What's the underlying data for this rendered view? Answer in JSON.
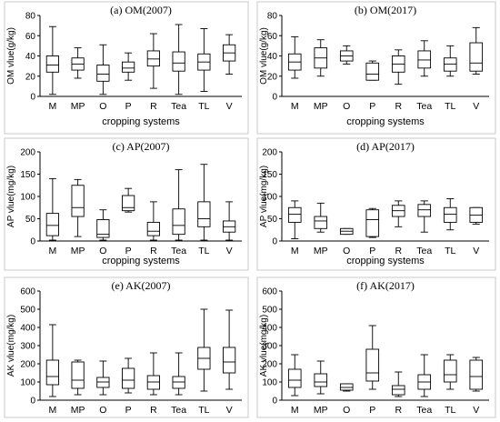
{
  "chart_data": [
    {
      "type": "boxplot",
      "title": "(a) OM(2007)",
      "ylabel": "OM vlue(g/kg)",
      "xlabel": "cropping systems",
      "ylim": [
        0,
        80
      ],
      "yticks": [
        0,
        20,
        40,
        60,
        80
      ],
      "categories": [
        "M",
        "MP",
        "O",
        "P",
        "R",
        "Tea",
        "TL",
        "V"
      ],
      "boxes": [
        {
          "min": 2,
          "q1": 24,
          "median": 31,
          "q3": 40,
          "max": 69
        },
        {
          "min": 18,
          "q1": 26,
          "median": 32,
          "q3": 38,
          "max": 48
        },
        {
          "min": 2,
          "q1": 15,
          "median": 22,
          "q3": 31,
          "max": 51
        },
        {
          "min": 16,
          "q1": 24,
          "median": 28,
          "q3": 34,
          "max": 43
        },
        {
          "min": 8,
          "q1": 30,
          "median": 37,
          "q3": 45,
          "max": 62
        },
        {
          "min": 2,
          "q1": 25,
          "median": 33,
          "q3": 44,
          "max": 71
        },
        {
          "min": 5,
          "q1": 26,
          "median": 34,
          "q3": 42,
          "max": 67
        },
        {
          "min": 22,
          "q1": 35,
          "median": 43,
          "q3": 51,
          "max": 61
        }
      ]
    },
    {
      "type": "boxplot",
      "title": "(b) OM(2017)",
      "ylabel": "OM vlue(g/kg)",
      "xlabel": "cropping systems",
      "ylim": [
        0,
        80
      ],
      "yticks": [
        0,
        20,
        40,
        60,
        80
      ],
      "categories": [
        "M",
        "MP",
        "O",
        "P",
        "R",
        "Tea",
        "TL",
        "V"
      ],
      "boxes": [
        {
          "min": 18,
          "q1": 26,
          "median": 34,
          "q3": 42,
          "max": 59
        },
        {
          "min": 20,
          "q1": 28,
          "median": 38,
          "q3": 48,
          "max": 56
        },
        {
          "min": 32,
          "q1": 35,
          "median": 40,
          "q3": 45,
          "max": 50
        },
        {
          "min": 16,
          "q1": 16,
          "median": 22,
          "q3": 33,
          "max": 35
        },
        {
          "min": 12,
          "q1": 24,
          "median": 32,
          "q3": 40,
          "max": 46
        },
        {
          "min": 20,
          "q1": 28,
          "median": 36,
          "q3": 45,
          "max": 55
        },
        {
          "min": 20,
          "q1": 25,
          "median": 32,
          "q3": 38,
          "max": 50
        },
        {
          "min": 22,
          "q1": 25,
          "median": 33,
          "q3": 53,
          "max": 68
        }
      ]
    },
    {
      "type": "boxplot",
      "title": "(c) AP(2007)",
      "ylabel": "AP vlue(mg/kg)",
      "xlabel": "cropping systems",
      "ylim": [
        0,
        200
      ],
      "yticks": [
        0,
        50,
        100,
        150,
        200
      ],
      "categories": [
        "M",
        "MP",
        "O",
        "P",
        "R",
        "Tea",
        "TL",
        "V"
      ],
      "boxes": [
        {
          "min": 2,
          "q1": 12,
          "median": 35,
          "q3": 62,
          "max": 140
        },
        {
          "min": 10,
          "q1": 55,
          "median": 75,
          "q3": 125,
          "max": 138
        },
        {
          "min": 2,
          "q1": 8,
          "median": 15,
          "q3": 48,
          "max": 70
        },
        {
          "min": 65,
          "q1": 68,
          "median": 75,
          "q3": 102,
          "max": 118
        },
        {
          "min": 2,
          "q1": 12,
          "median": 22,
          "q3": 42,
          "max": 88
        },
        {
          "min": 2,
          "q1": 15,
          "median": 35,
          "q3": 72,
          "max": 160
        },
        {
          "min": 2,
          "q1": 32,
          "median": 50,
          "q3": 88,
          "max": 172
        },
        {
          "min": 2,
          "q1": 20,
          "median": 32,
          "q3": 45,
          "max": 88
        }
      ]
    },
    {
      "type": "boxplot",
      "title": "(d) AP(2017)",
      "ylabel": "AP vlue(mg/kg)",
      "xlabel": "cropping systems",
      "ylim": [
        0,
        200
      ],
      "yticks": [
        0,
        50,
        100,
        150,
        200
      ],
      "categories": [
        "M",
        "MP",
        "O",
        "P",
        "R",
        "Tea",
        "TL",
        "V"
      ],
      "boxes": [
        {
          "min": 5,
          "q1": 42,
          "median": 60,
          "q3": 75,
          "max": 90
        },
        {
          "min": 20,
          "q1": 28,
          "median": 45,
          "q3": 55,
          "max": 85
        },
        {
          "min": 15,
          "q1": 15,
          "median": 22,
          "q3": 28,
          "max": 28
        },
        {
          "min": 8,
          "q1": 10,
          "median": 48,
          "q3": 70,
          "max": 73
        },
        {
          "min": 32,
          "q1": 55,
          "median": 68,
          "q3": 80,
          "max": 90
        },
        {
          "min": 20,
          "q1": 55,
          "median": 70,
          "q3": 82,
          "max": 90
        },
        {
          "min": 25,
          "q1": 42,
          "median": 60,
          "q3": 75,
          "max": 95
        },
        {
          "min": 38,
          "q1": 42,
          "median": 58,
          "q3": 75,
          "max": 75
        }
      ]
    },
    {
      "type": "boxplot",
      "title": "(e) AK(2007)",
      "ylabel": "AK vlue(mg/kg)",
      "xlabel": "",
      "ylim": [
        0,
        600
      ],
      "yticks": [
        0,
        100,
        200,
        300,
        400,
        500,
        600
      ],
      "categories": [
        "M",
        "MP",
        "O",
        "P",
        "R",
        "Tea",
        "TL",
        "V"
      ],
      "boxes": [
        {
          "min": 20,
          "q1": 85,
          "median": 130,
          "q3": 220,
          "max": 415
        },
        {
          "min": 30,
          "q1": 65,
          "median": 110,
          "q3": 210,
          "max": 220
        },
        {
          "min": 30,
          "q1": 70,
          "median": 100,
          "q3": 125,
          "max": 215
        },
        {
          "min": 40,
          "q1": 65,
          "median": 110,
          "q3": 175,
          "max": 230
        },
        {
          "min": 30,
          "q1": 60,
          "median": 100,
          "q3": 135,
          "max": 260
        },
        {
          "min": 30,
          "q1": 65,
          "median": 100,
          "q3": 130,
          "max": 260
        },
        {
          "min": 50,
          "q1": 170,
          "median": 230,
          "q3": 290,
          "max": 500
        },
        {
          "min": 60,
          "q1": 150,
          "median": 210,
          "q3": 290,
          "max": 495
        }
      ]
    },
    {
      "type": "boxplot",
      "title": "(f) AK(2017)",
      "ylabel": "AK vlue(mg/kg)",
      "xlabel": "",
      "ylim": [
        0,
        600
      ],
      "yticks": [
        0,
        100,
        200,
        300,
        400,
        500,
        600
      ],
      "categories": [
        "M",
        "MP",
        "O",
        "P",
        "R",
        "Tea",
        "TL",
        "V"
      ],
      "boxes": [
        {
          "min": 25,
          "q1": 70,
          "median": 110,
          "q3": 170,
          "max": 250
        },
        {
          "min": 35,
          "q1": 75,
          "median": 100,
          "q3": 145,
          "max": 215
        },
        {
          "min": 50,
          "q1": 55,
          "median": 70,
          "q3": 90,
          "max": 90
        },
        {
          "min": 60,
          "q1": 105,
          "median": 150,
          "q3": 280,
          "max": 410
        },
        {
          "min": 20,
          "q1": 30,
          "median": 60,
          "q3": 80,
          "max": 155
        },
        {
          "min": 20,
          "q1": 60,
          "median": 100,
          "q3": 140,
          "max": 250
        },
        {
          "min": 60,
          "q1": 100,
          "median": 140,
          "q3": 220,
          "max": 250
        },
        {
          "min": 50,
          "q1": 60,
          "median": 130,
          "q3": 220,
          "max": 235
        }
      ]
    }
  ]
}
